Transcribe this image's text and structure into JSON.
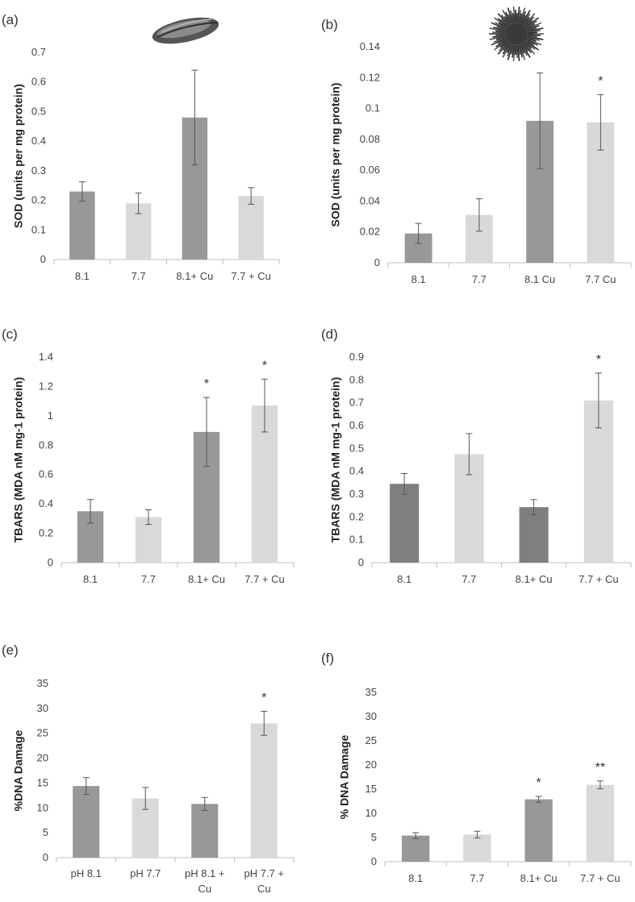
{
  "chart_data": [
    {
      "type": "bar",
      "panel_label": "(a)",
      "icon": "mussel-icon",
      "ylabel": "SOD (units per mg protein)",
      "categories": [
        "8.1",
        "7.7",
        "8.1+ Cu",
        "7.7 + Cu"
      ],
      "values": [
        0.23,
        0.19,
        0.48,
        0.215
      ],
      "errors": [
        0.033,
        0.035,
        0.16,
        0.028
      ],
      "significance": [
        "",
        "",
        "",
        ""
      ],
      "colors": [
        "#989898",
        "#d9d9d9",
        "#989898",
        "#d9d9d9"
      ],
      "ylim": [
        0,
        0.7
      ],
      "yticks": [
        0,
        0.1,
        0.2,
        0.3,
        0.4,
        0.5,
        0.6,
        0.7
      ],
      "ytick_labels": [
        "0",
        "0.1",
        "0.2",
        "0.3",
        "0.4",
        "0.5",
        "0.6",
        "0.7"
      ]
    },
    {
      "type": "bar",
      "panel_label": "(b)",
      "icon": "sea-urchin-icon",
      "ylabel": "SOD (units per mg protein)",
      "categories": [
        "8.1",
        "7.7",
        "8.1 Cu",
        "7.7 Cu"
      ],
      "values": [
        0.019,
        0.031,
        0.092,
        0.091
      ],
      "errors": [
        0.0065,
        0.0105,
        0.031,
        0.018
      ],
      "significance": [
        "",
        "",
        "",
        "*"
      ],
      "colors": [
        "#989898",
        "#d9d9d9",
        "#989898",
        "#d9d9d9"
      ],
      "ylim": [
        0,
        0.14
      ],
      "yticks": [
        0,
        0.02,
        0.04,
        0.06,
        0.08,
        0.1,
        0.12,
        0.14
      ],
      "ytick_labels": [
        "0",
        "0.02",
        "0.04",
        "0.06",
        "0.08",
        "0.1",
        "0.12",
        "0.14"
      ]
    },
    {
      "type": "bar",
      "panel_label": "(c)",
      "ylabel": "TBARS (MDA nM mg-1 protein)",
      "categories": [
        "8.1",
        "7.7",
        "8.1+ Cu",
        "7.7 + Cu"
      ],
      "values": [
        0.35,
        0.31,
        0.89,
        1.07
      ],
      "errors": [
        0.08,
        0.05,
        0.235,
        0.18
      ],
      "significance": [
        "",
        "",
        "*",
        "*"
      ],
      "colors": [
        "#989898",
        "#d9d9d9",
        "#989898",
        "#d9d9d9"
      ],
      "ylim": [
        0,
        1.4
      ],
      "yticks": [
        0,
        0.2,
        0.4,
        0.6,
        0.8,
        1,
        1.2,
        1.4
      ],
      "ytick_labels": [
        "0",
        "0.2",
        "0.4",
        "0.6",
        "0.8",
        "1",
        "1.2",
        "1.4"
      ]
    },
    {
      "type": "bar",
      "panel_label": "(d)",
      "ylabel": "TBARS (MDA nM mg-1 protein)",
      "categories": [
        "8.1",
        "7.7",
        "8.1+ Cu",
        "7.7 + Cu"
      ],
      "values": [
        0.345,
        0.475,
        0.243,
        0.71
      ],
      "errors": [
        0.045,
        0.09,
        0.033,
        0.12
      ],
      "significance": [
        "",
        "",
        "",
        "*"
      ],
      "colors": [
        "#7f7f7f",
        "#d9d9d9",
        "#7f7f7f",
        "#d9d9d9"
      ],
      "ylim": [
        0,
        0.9
      ],
      "yticks": [
        0,
        0.1,
        0.2,
        0.3,
        0.4,
        0.5,
        0.6,
        0.7,
        0.8,
        0.9
      ],
      "ytick_labels": [
        "0",
        "0.1",
        "0.2",
        "0.3",
        "0.4",
        "0.5",
        "0.6",
        "0.7",
        "0.8",
        "0.9"
      ]
    },
    {
      "type": "bar",
      "panel_label": "(e)",
      "ylabel": "%DNA Damage",
      "categories": [
        [
          "pH 8.1"
        ],
        [
          "pH 7.7"
        ],
        [
          "pH 8.1 +",
          "Cu"
        ],
        [
          "pH 7.7 +",
          "Cu"
        ]
      ],
      "values": [
        14.4,
        11.9,
        10.8,
        27.0
      ],
      "errors": [
        1.7,
        2.2,
        1.3,
        2.4
      ],
      "significance": [
        "",
        "",
        "",
        "*"
      ],
      "colors": [
        "#989898",
        "#d9d9d9",
        "#989898",
        "#d9d9d9"
      ],
      "ylim": [
        0,
        35
      ],
      "yticks": [
        0,
        5,
        10,
        15,
        20,
        25,
        30,
        35
      ],
      "ytick_labels": [
        "0",
        "5",
        "10",
        "15",
        "20",
        "25",
        "30",
        "35"
      ]
    },
    {
      "type": "bar",
      "panel_label": "(f)",
      "ylabel": "% DNA Damage",
      "categories": [
        "8.1",
        "7.7",
        "8.1+ Cu",
        "7.7 + Cu"
      ],
      "values": [
        5.4,
        5.6,
        12.9,
        15.9
      ],
      "errors": [
        0.6,
        0.7,
        0.6,
        0.8
      ],
      "significance": [
        "",
        "",
        "*",
        "**"
      ],
      "colors": [
        "#989898",
        "#d9d9d9",
        "#989898",
        "#d9d9d9"
      ],
      "ylim": [
        0,
        35
      ],
      "yticks": [
        0,
        5,
        10,
        15,
        20,
        25,
        30,
        35
      ],
      "ytick_labels": [
        "0",
        "5",
        "10",
        "15",
        "20",
        "25",
        "30",
        "35"
      ]
    }
  ]
}
